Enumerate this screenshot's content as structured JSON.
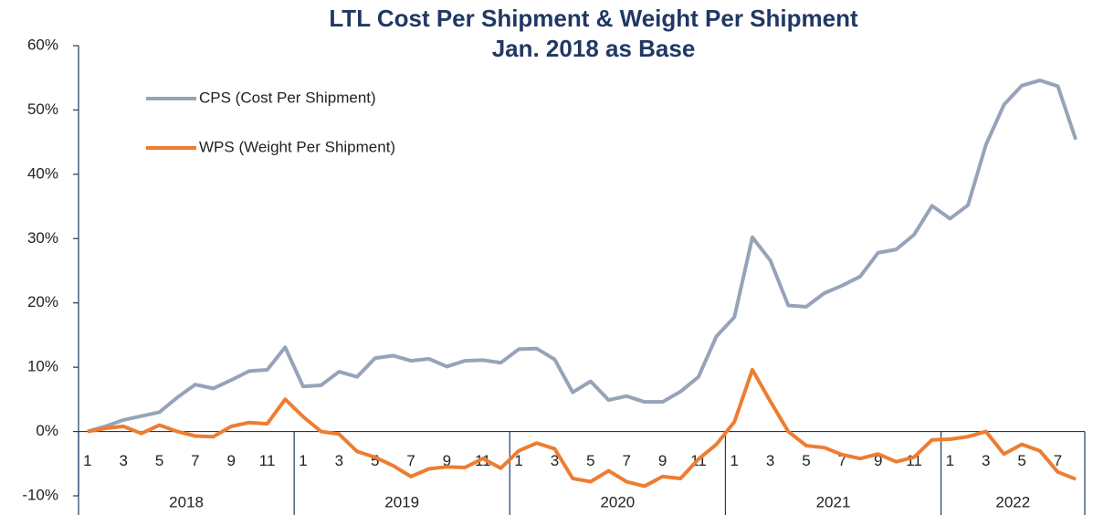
{
  "chart_data": {
    "type": "line",
    "title": "LTL Cost Per Shipment & Weight Per Shipment",
    "subtitle": "Jan. 2018 as Base",
    "categories": [
      "1",
      null,
      "3",
      null,
      "5",
      null,
      "7",
      null,
      "9",
      null,
      "11",
      null,
      "1",
      null,
      "3",
      null,
      "5",
      null,
      "7",
      null,
      "9",
      null,
      "11",
      null,
      "1",
      null,
      "3",
      null,
      "5",
      null,
      "7",
      null,
      "9",
      null,
      "11",
      null,
      "1",
      null,
      "3",
      null,
      "5",
      null,
      "7",
      null,
      "9",
      null,
      "11",
      null,
      "1",
      null,
      "3",
      null,
      "5",
      null,
      "7",
      null
    ],
    "category_groups": [
      "2018",
      "2019",
      "2020",
      "2021",
      "2022"
    ],
    "series": [
      {
        "name": "CPS (Cost Per Shipment)",
        "color": "#96a3b8",
        "values": [
          0,
          0.8,
          1.8,
          2.4,
          3.0,
          5.3,
          7.3,
          6.7,
          8.0,
          9.4,
          9.6,
          13.1,
          7.0,
          7.2,
          9.3,
          8.5,
          11.4,
          11.8,
          11.0,
          11.3,
          10.1,
          11.0,
          11.1,
          10.7,
          12.8,
          12.9,
          11.2,
          6.1,
          7.8,
          4.9,
          5.5,
          4.6,
          4.6,
          6.2,
          8.5,
          14.8,
          17.8,
          30.2,
          26.6,
          19.6,
          19.4,
          21.5,
          22.7,
          24.1,
          27.8,
          28.3,
          30.6,
          35.1,
          33.1,
          35.2,
          44.6,
          50.8,
          53.8,
          54.6,
          53.7,
          45.4
        ]
      },
      {
        "name": "WPS (Weight Per Shipment)",
        "color": "#ed7d31",
        "values": [
          0,
          0.5,
          0.8,
          -0.3,
          1.0,
          0,
          -0.7,
          -0.8,
          0.8,
          1.4,
          1.2,
          5.0,
          2.3,
          0,
          -0.4,
          -3.1,
          -4.0,
          -5.3,
          -7.0,
          -5.8,
          -5.5,
          -5.6,
          -4.2,
          -5.7,
          -3.0,
          -1.8,
          -2.7,
          -7.3,
          -7.8,
          -6.1,
          -7.8,
          -8.5,
          -7.0,
          -7.3,
          -4.3,
          -2.0,
          1.5,
          9.6,
          4.7,
          0,
          -2.2,
          -2.5,
          -3.6,
          -4.2,
          -3.5,
          -4.7,
          -4.0,
          -1.3,
          -1.2,
          -0.8,
          0,
          -3.5,
          -2.0,
          -3.0,
          -6.3,
          -7.4
        ]
      }
    ],
    "ylim": [
      -10,
      60
    ],
    "yticks": [
      {
        "value": -10,
        "label": "-10%"
      },
      {
        "value": 0,
        "label": "0%"
      },
      {
        "value": 10,
        "label": "10%"
      },
      {
        "value": 20,
        "label": "20%"
      },
      {
        "value": 30,
        "label": "30%"
      },
      {
        "value": 40,
        "label": "40%"
      },
      {
        "value": 50,
        "label": "50%"
      },
      {
        "value": 60,
        "label": "60%"
      }
    ],
    "legend": "upper left",
    "grid": false
  }
}
